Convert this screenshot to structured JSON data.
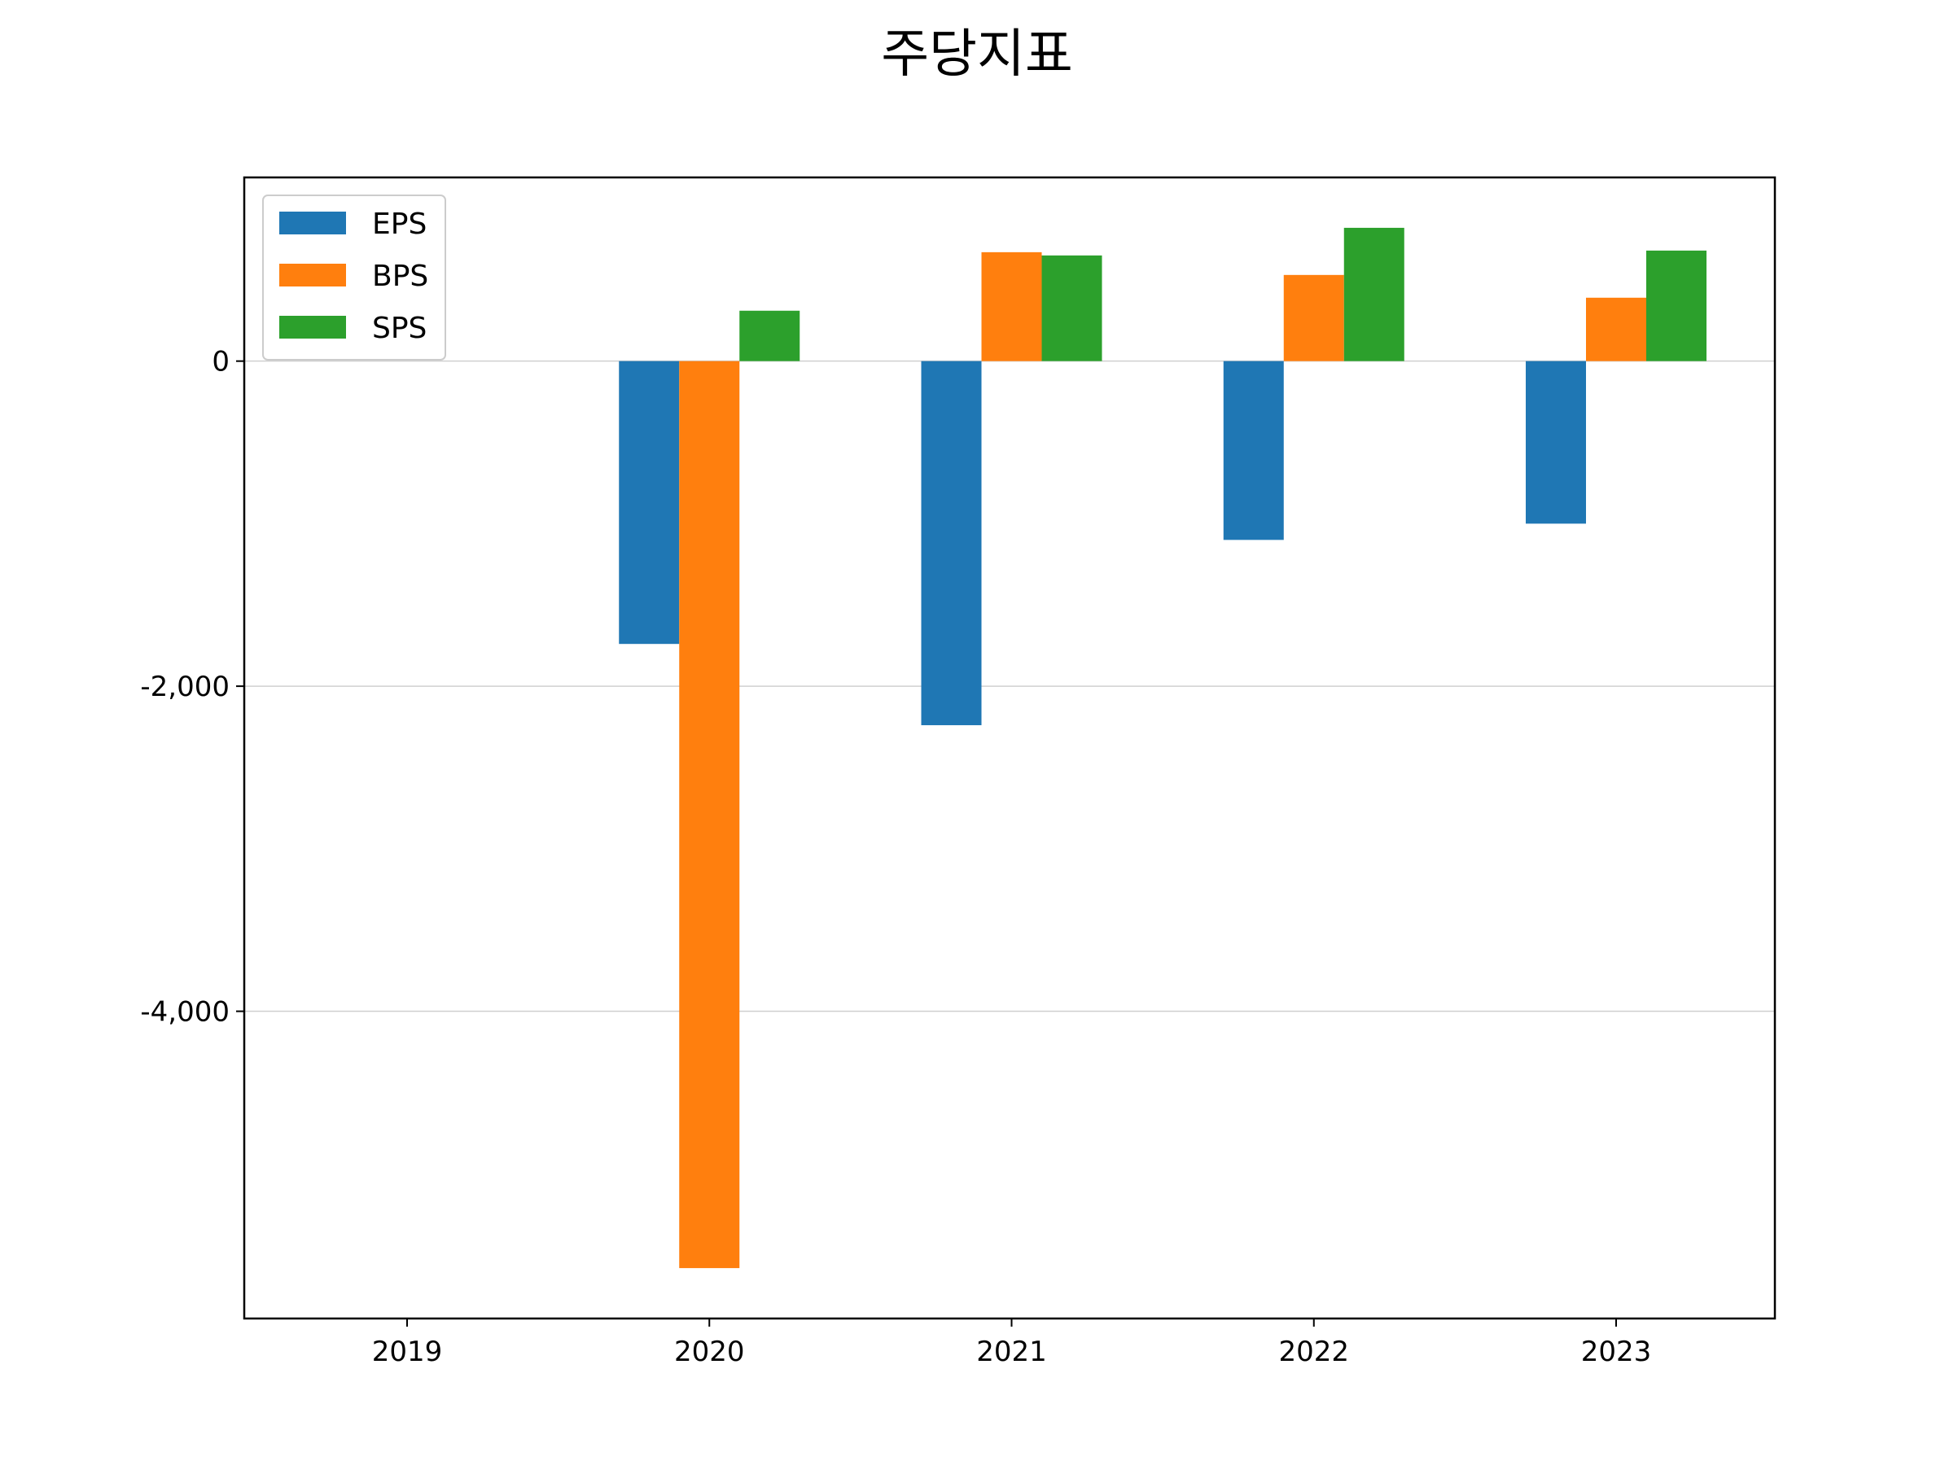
{
  "chart_data": {
    "type": "bar",
    "title": "주당지표",
    "xlabel": "",
    "ylabel": "",
    "categories": [
      "2019",
      "2020",
      "2021",
      "2022",
      "2023"
    ],
    "series": [
      {
        "name": "EPS",
        "color": "#1f77b4",
        "values": [
          0,
          -1740,
          -2240,
          -1100,
          -1000
        ]
      },
      {
        "name": "BPS",
        "color": "#ff7f0e",
        "values": [
          0,
          -5580,
          670,
          530,
          390
        ]
      },
      {
        "name": "SPS",
        "color": "#2ca02c",
        "values": [
          0,
          310,
          650,
          820,
          680
        ]
      }
    ],
    "ylim": [
      -5890,
      1130
    ],
    "yticks": [
      0,
      -2000,
      -4000
    ],
    "ytick_labels": [
      "0",
      "-2,000",
      "-4,000"
    ],
    "grid": "horizontal",
    "legend_position": "top-left"
  }
}
